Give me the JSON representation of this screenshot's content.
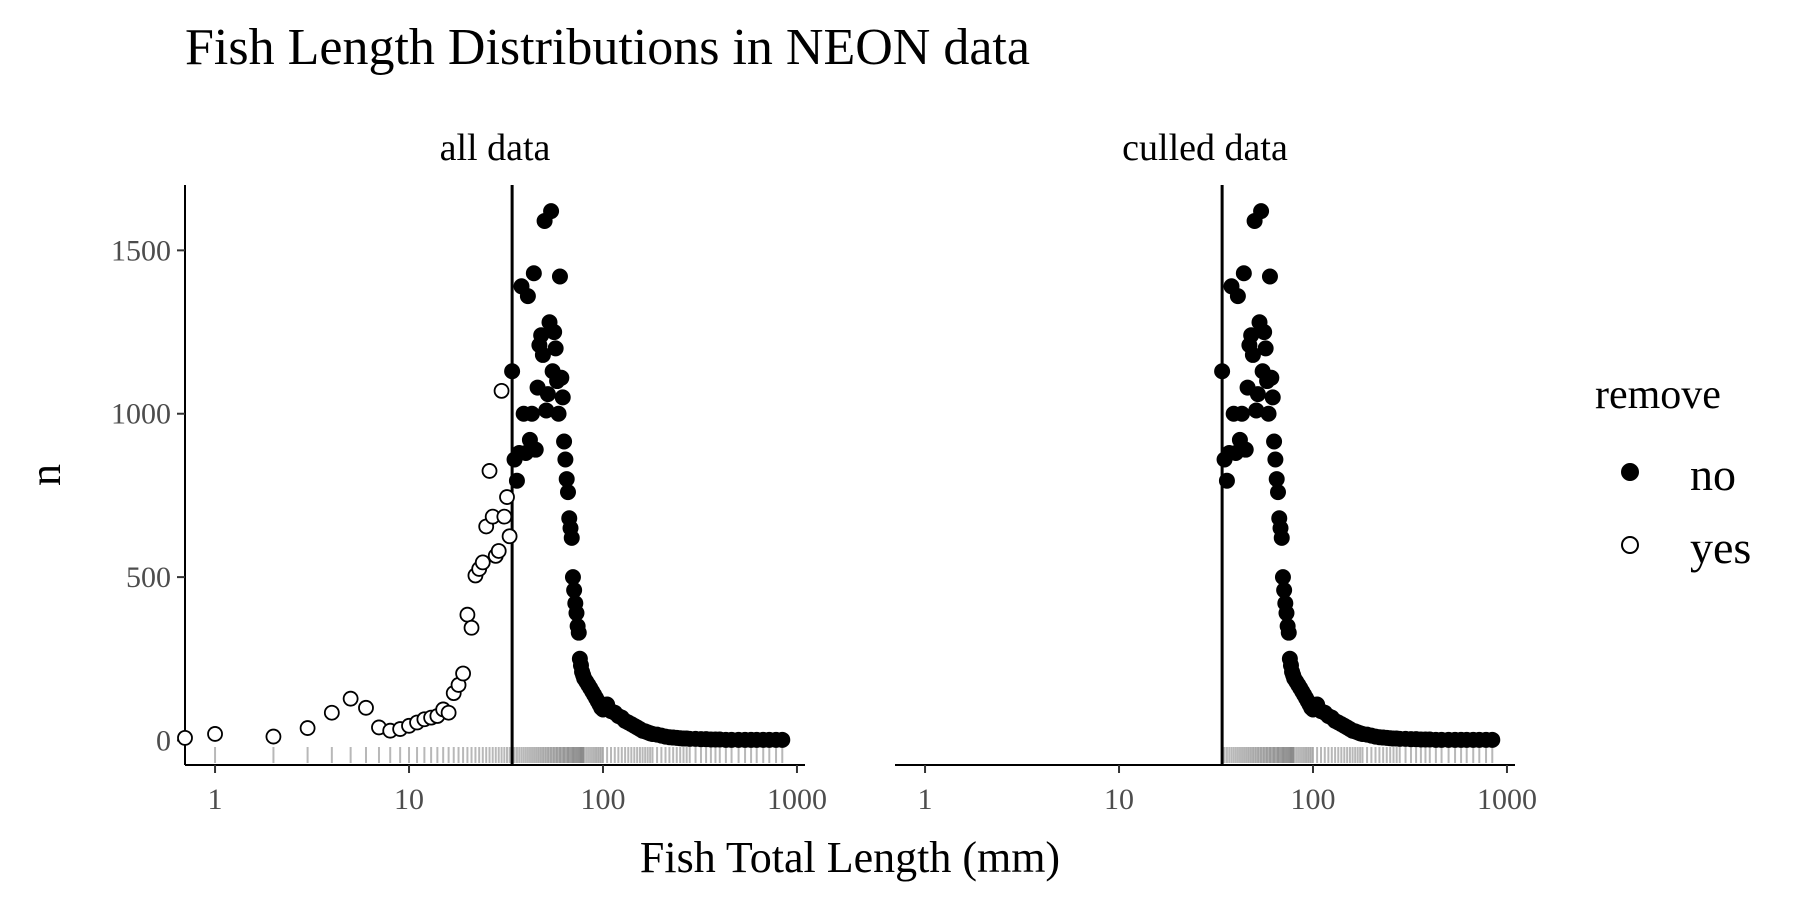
{
  "chart_data": {
    "type": "scatter",
    "title": "Fish Length Distributions in NEON data",
    "xlabel": "Fish Total Length (mm)",
    "ylabel": "n",
    "x_scale": "log10",
    "xlim": [
      0.7,
      1100
    ],
    "ylim": [
      -75,
      1700
    ],
    "x_ticks": [
      1,
      10,
      100,
      1000
    ],
    "x_tick_labels": [
      "1",
      "10",
      "100",
      "1000"
    ],
    "y_ticks": [
      0,
      500,
      1000,
      1500
    ],
    "y_tick_labels": [
      "0",
      "500",
      "1000",
      "1500"
    ],
    "cutoff_line_x": 34,
    "grid": false,
    "legend": {
      "title": "remove",
      "position": "right",
      "entries": [
        {
          "label": "no",
          "marker": "filled-circle"
        },
        {
          "label": "yes",
          "marker": "open-circle"
        }
      ]
    },
    "panels": [
      {
        "title": "all data",
        "series": [
          "yes",
          "no"
        ]
      },
      {
        "title": "culled data",
        "series": [
          "no"
        ]
      }
    ],
    "series": [
      {
        "name": "yes",
        "marker": "open-circle",
        "x": [
          0.7,
          1,
          2,
          3,
          4,
          5,
          6,
          7,
          8,
          9,
          10,
          11,
          12,
          13,
          14,
          15,
          16,
          17,
          18,
          19,
          20,
          21,
          22,
          23,
          24,
          25,
          26,
          27,
          28,
          29,
          30,
          31,
          32,
          33
        ],
        "y": [
          8,
          20,
          12,
          38,
          85,
          128,
          100,
          40,
          30,
          35,
          45,
          55,
          65,
          70,
          75,
          95,
          85,
          145,
          170,
          205,
          385,
          345,
          505,
          525,
          545,
          655,
          825,
          685,
          565,
          580,
          1070,
          685,
          745,
          625
        ]
      },
      {
        "name": "no",
        "marker": "filled-circle",
        "x": [
          34,
          35,
          36,
          37,
          38,
          39,
          40,
          41,
          42,
          43,
          44,
          45,
          46,
          47,
          48,
          49,
          50,
          51,
          52,
          53,
          54,
          55,
          56,
          57,
          58,
          59,
          60,
          61,
          62,
          63,
          64,
          65,
          66,
          67,
          68,
          69,
          70,
          71,
          72,
          73,
          74,
          75,
          76,
          77,
          78,
          79,
          80,
          82,
          84,
          86,
          88,
          90,
          92,
          94,
          96,
          98,
          100,
          105,
          110,
          115,
          120,
          125,
          130,
          135,
          140,
          145,
          150,
          155,
          160,
          165,
          170,
          175,
          180,
          190,
          200,
          210,
          220,
          230,
          240,
          250,
          260,
          270,
          280,
          300,
          320,
          340,
          360,
          380,
          400,
          430,
          460,
          500,
          540,
          580,
          620,
          670,
          720,
          780,
          840
        ],
        "y": [
          1130,
          860,
          795,
          880,
          1390,
          1000,
          880,
          1360,
          920,
          1000,
          1430,
          890,
          1080,
          1210,
          1240,
          1180,
          1590,
          1010,
          1060,
          1280,
          1620,
          1130,
          1250,
          1200,
          1100,
          1000,
          1420,
          1110,
          1050,
          915,
          860,
          800,
          760,
          680,
          650,
          620,
          500,
          460,
          420,
          390,
          350,
          330,
          250,
          230,
          210,
          200,
          190,
          180,
          170,
          160,
          150,
          140,
          130,
          120,
          110,
          100,
          95,
          110,
          90,
          85,
          75,
          70,
          60,
          55,
          50,
          45,
          40,
          35,
          30,
          28,
          25,
          22,
          20,
          18,
          15,
          12,
          10,
          9,
          8,
          7,
          6,
          6,
          5,
          5,
          4,
          4,
          3,
          3,
          3,
          2,
          2,
          2,
          2,
          2,
          2,
          2,
          2,
          2,
          2
        ]
      }
    ]
  }
}
